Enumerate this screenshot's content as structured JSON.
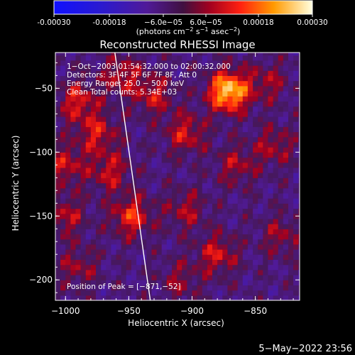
{
  "colorbar": {
    "ticks": [
      "-0.00030",
      "-0.00018",
      "−6.0e−05",
      "6.0e−05",
      "0.00018",
      "0.00030"
    ],
    "units_prefix": "(photons cm",
    "units_sup1": "−2",
    "units_mid1": " s",
    "units_sup2": "−1",
    "units_mid2": " asec",
    "units_sup3": "−2",
    "units_suffix": ")",
    "range": [
      -0.0003,
      0.0003
    ]
  },
  "chart_data": {
    "type": "heatmap",
    "title": "Reconstructed RHESSI Image",
    "xlabel": "Heliocentric X (arcsec)",
    "ylabel": "Heliocentric Y (arcsec)",
    "xlim": [
      -1008,
      -815
    ],
    "ylim": [
      -216,
      -22
    ],
    "xticks": [
      {
        "value": -1000,
        "label": "−1000"
      },
      {
        "value": -950,
        "label": "−950"
      },
      {
        "value": -900,
        "label": "−900"
      },
      {
        "value": -850,
        "label": "−850"
      }
    ],
    "yticks": [
      {
        "value": -50,
        "label": "−50"
      },
      {
        "value": -100,
        "label": "−100"
      },
      {
        "value": -150,
        "label": "−150"
      },
      {
        "value": -200,
        "label": "−200"
      }
    ],
    "annotations": [
      "1−Oct−2003 01:54:32.000 to 02:00:32.000",
      "Detectors: 3F 4F 5F 6F 7F 8F, Att 0",
      "Energy Range: 25.0 − 50.0 keV",
      "Clean     Total counts: 5.34E+03"
    ],
    "peak_label": "Position of Peak = [−871,−52]",
    "peak": [
      -871,
      -52
    ],
    "hotspots": [
      {
        "x": -871,
        "y": -52,
        "value": 0.0003
      },
      {
        "x": -990,
        "y": -60,
        "value": 0.00014
      },
      {
        "x": -930,
        "y": -55,
        "value": 0.00012
      },
      {
        "x": -905,
        "y": -85,
        "value": 0.00013
      },
      {
        "x": -955,
        "y": -40,
        "value": 0.00012
      },
      {
        "x": -975,
        "y": -85,
        "value": 0.00013
      },
      {
        "x": -965,
        "y": -115,
        "value": 0.00012
      },
      {
        "x": -948,
        "y": -150,
        "value": 0.00016
      },
      {
        "x": -880,
        "y": -180,
        "value": 0.00013
      },
      {
        "x": -1000,
        "y": -110,
        "value": 0.00012
      },
      {
        "x": -1000,
        "y": -150,
        "value": 0.00011
      },
      {
        "x": -865,
        "y": -110,
        "value": 0.0001
      },
      {
        "x": -835,
        "y": -95,
        "value": 0.0001
      },
      {
        "x": -905,
        "y": -145,
        "value": 0.0001
      },
      {
        "x": -990,
        "y": -190,
        "value": 9e-05
      },
      {
        "x": -830,
        "y": -165,
        "value": 9e-05
      },
      {
        "x": -910,
        "y": -200,
        "value": 8e-05
      },
      {
        "x": -840,
        "y": -45,
        "value": 9e-05
      }
    ],
    "limb_curve": [
      [
        -961,
        -22
      ],
      [
        -950,
        -100
      ],
      [
        -940,
        -170
      ],
      [
        -933,
        -216
      ]
    ]
  },
  "timestamp": "5−May−2022 23:56"
}
